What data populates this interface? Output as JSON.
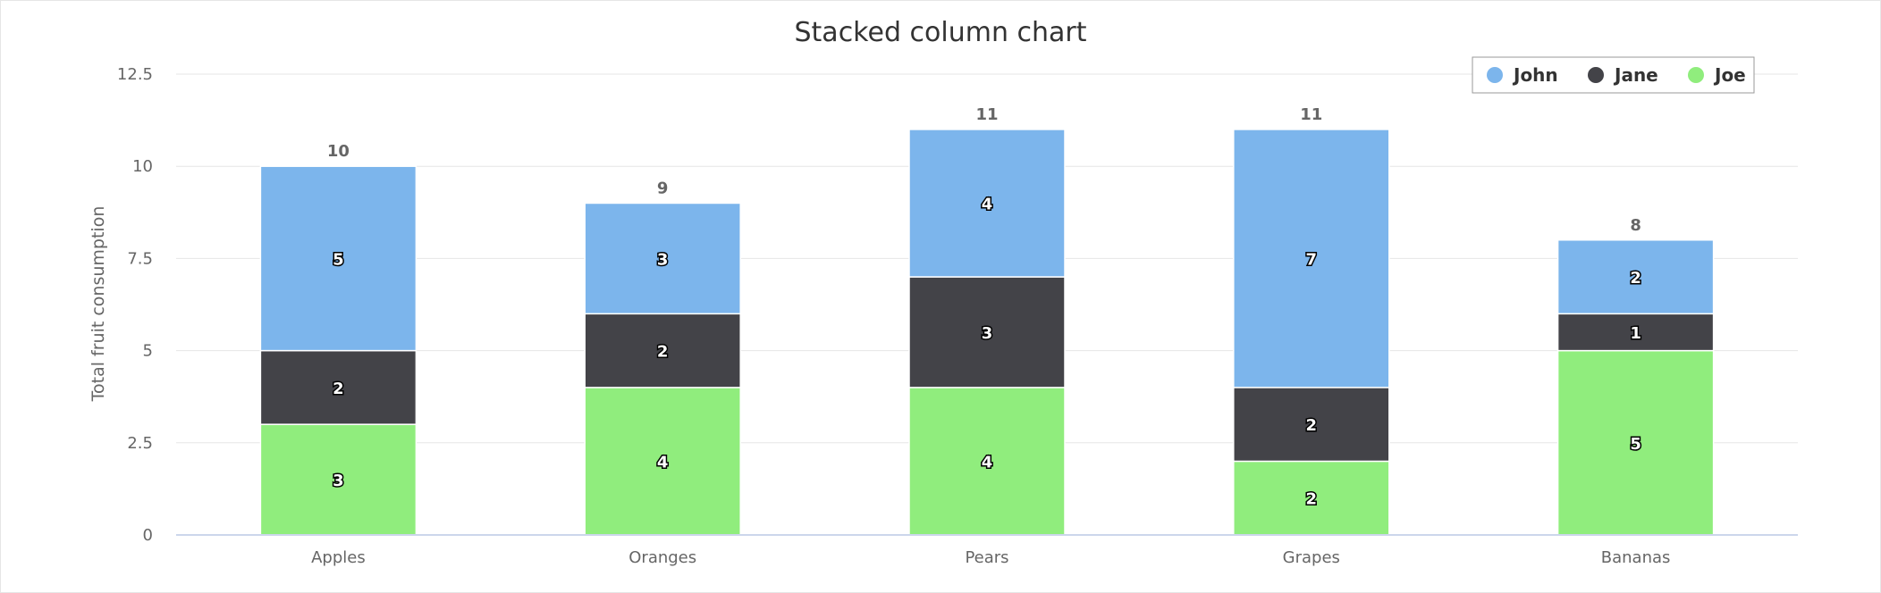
{
  "chart_data": {
    "type": "bar",
    "stacked": true,
    "title": "Stacked column chart",
    "xlabel": "",
    "ylabel": "Total fruit consumption",
    "categories": [
      "Apples",
      "Oranges",
      "Pears",
      "Grapes",
      "Bananas"
    ],
    "ylim": [
      0,
      12.5
    ],
    "yticks": [
      "0",
      "2.5",
      "5",
      "7.5",
      "10",
      "12.5"
    ],
    "totals": [
      10,
      9,
      11,
      11,
      8
    ],
    "series": [
      {
        "name": "John",
        "color": "#7cb5ec",
        "values": [
          5,
          3,
          4,
          7,
          2
        ]
      },
      {
        "name": "Jane",
        "color": "#434348",
        "values": [
          2,
          2,
          3,
          2,
          1
        ]
      },
      {
        "name": "Joe",
        "color": "#90ed7d",
        "values": [
          3,
          4,
          4,
          2,
          5
        ]
      }
    ],
    "grid": true,
    "legend_position": "top-right",
    "gridline_color": "#e6e6e6",
    "axis_color": "#ccd6eb"
  }
}
